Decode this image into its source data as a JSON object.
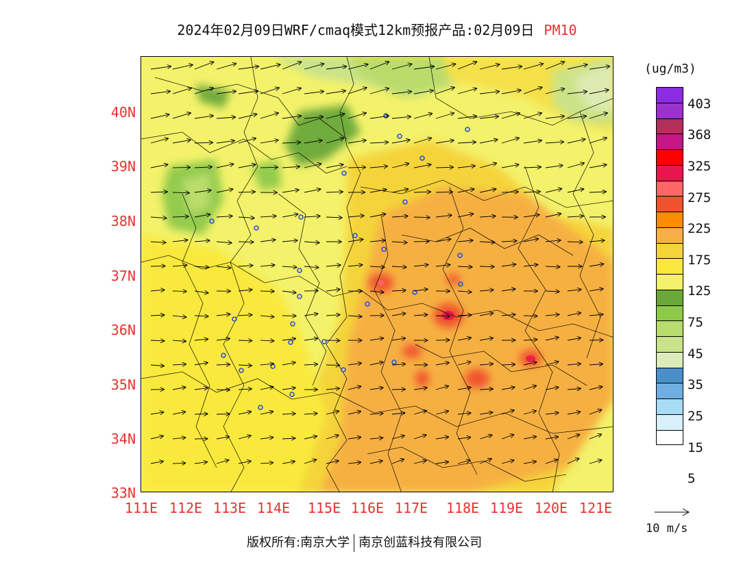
{
  "header": {
    "title": "2024年02月09日WRF/cmaq模式12km预报产品:02月09日",
    "pollutant": "PM10"
  },
  "axes": {
    "lat_labels": [
      "40N",
      "39N",
      "38N",
      "37N",
      "36N",
      "35N",
      "34N",
      "33N"
    ],
    "lon_labels": [
      "111E",
      "112E",
      "113E",
      "114E",
      "115E",
      "116E",
      "117E",
      "118E",
      "119E",
      "120E",
      "121E"
    ]
  },
  "legend": {
    "unit": "(ug/m3)",
    "colors": [
      "#8b2be2",
      "#9a32cd",
      "#b0305a",
      "#c71585",
      "#ff0000",
      "#e8164c",
      "#ff6666",
      "#f0522e",
      "#ff8c00",
      "#f6b043",
      "#f5d43a",
      "#fae93c",
      "#f3f26a",
      "#6aa83a",
      "#8ec94b",
      "#b8dc6d",
      "#c9e38a",
      "#dcecb8",
      "#4a90c8",
      "#6faee0",
      "#a6dcf4",
      "#d7f0fa",
      "#ffffff"
    ],
    "labels": [
      "403",
      "368",
      "325",
      "275",
      "225",
      "175",
      "125",
      "75",
      "45",
      "35",
      "25",
      "15",
      "5"
    ]
  },
  "wind": {
    "scale_label": "10 m/s"
  },
  "footer": {
    "left": "版权所有:南京大学",
    "right": "南京创蓝科技有限公司"
  }
}
